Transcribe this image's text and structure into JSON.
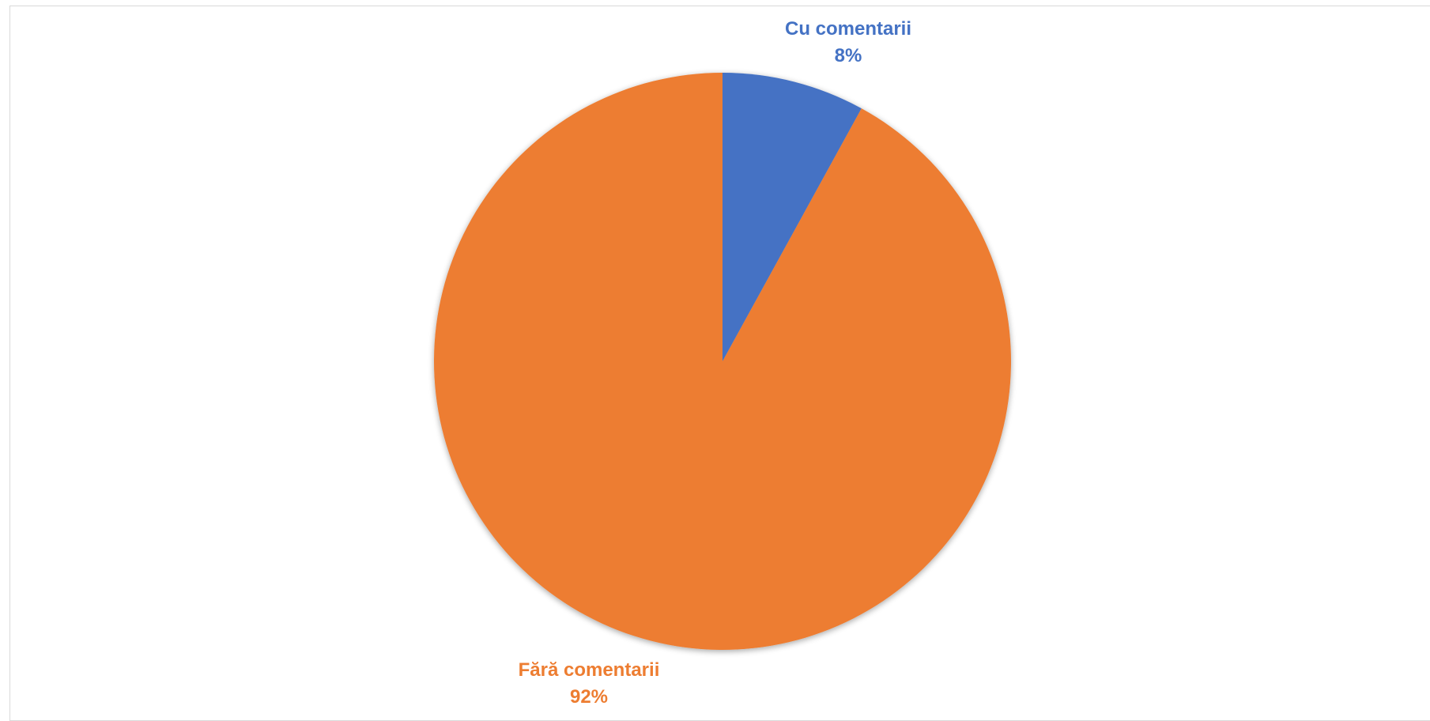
{
  "chart_data": {
    "type": "pie",
    "title": "",
    "start_angle_deg": 0,
    "direction": "clockwise",
    "slices": [
      {
        "label": "Cu comentarii",
        "value": 8,
        "value_label": "8%",
        "color": "#4472C4"
      },
      {
        "label": "Fără comentarii",
        "value": 92,
        "value_label": "92%",
        "color": "#ED7D31"
      }
    ],
    "legend": "none",
    "data_labels": "outside, category name and percentage, colored like slice"
  }
}
